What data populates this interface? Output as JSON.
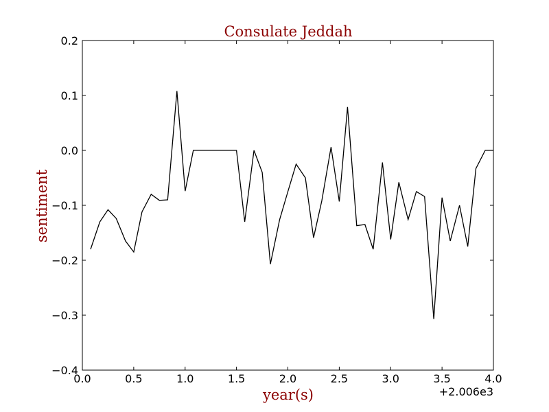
{
  "chart_data": {
    "type": "line",
    "title": "Consulate Jeddah",
    "xlabel": "year(s)",
    "ylabel": "sentiment",
    "x_offset_label": "+2.006e3",
    "xlim": [
      0.0,
      4.0
    ],
    "ylim": [
      -0.4,
      0.2
    ],
    "x_ticks": [
      "0.0",
      "0.5",
      "1.0",
      "1.5",
      "2.0",
      "2.5",
      "3.0",
      "3.5",
      "4.0"
    ],
    "y_ticks": [
      "0.2",
      "0.1",
      "0.0",
      "−0.1",
      "−0.2",
      "−0.3",
      "−0.4"
    ],
    "grid": false,
    "colors": {
      "line": "#000000",
      "title": "#8b0000",
      "labels": "#8b0000"
    },
    "series": [
      {
        "x": [
          0.08,
          0.17,
          0.25,
          0.33,
          0.42,
          0.5,
          0.58,
          0.67,
          0.75,
          0.83,
          0.92,
          1.0,
          1.08,
          1.17,
          1.25,
          1.33,
          1.42,
          1.5,
          1.58,
          1.67,
          1.75,
          1.83,
          1.92,
          2.0,
          2.08,
          2.17,
          2.25,
          2.33,
          2.42,
          2.5,
          2.58,
          2.67,
          2.75,
          2.83,
          2.92,
          3.0,
          3.08,
          3.17,
          3.25,
          3.33,
          3.42,
          3.5,
          3.58,
          3.67,
          3.75,
          3.83,
          3.92,
          4.0
        ],
        "y": [
          -0.18,
          -0.13,
          -0.108,
          -0.124,
          -0.165,
          -0.185,
          -0.112,
          -0.08,
          -0.091,
          -0.09,
          0.108,
          -0.074,
          0.0,
          0.0,
          0.0,
          0.0,
          0.0,
          0.0,
          -0.13,
          0.0,
          -0.04,
          -0.207,
          -0.126,
          -0.075,
          -0.025,
          -0.05,
          -0.159,
          -0.092,
          0.006,
          -0.093,
          0.079,
          -0.137,
          -0.135,
          -0.18,
          -0.022,
          -0.162,
          -0.058,
          -0.126,
          -0.075,
          -0.084,
          -0.307,
          -0.086,
          -0.165,
          -0.1,
          -0.175,
          -0.033,
          0.0,
          0.0
        ]
      }
    ]
  }
}
